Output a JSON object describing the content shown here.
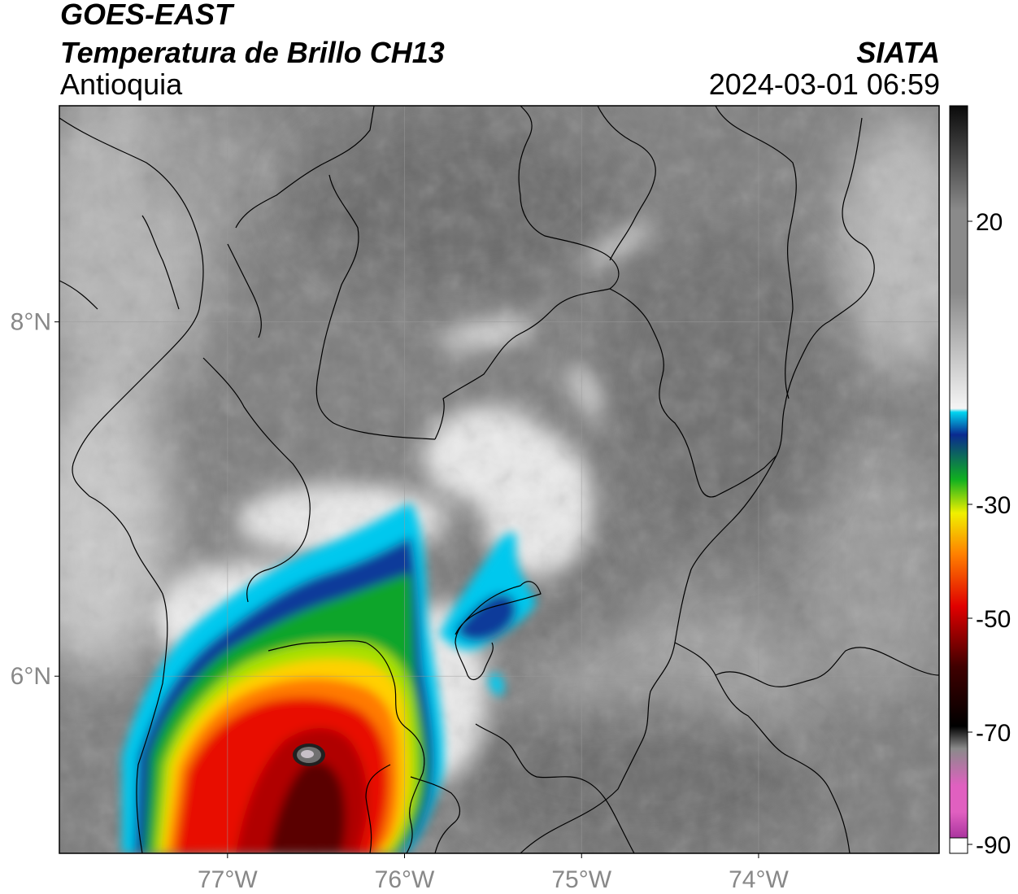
{
  "header": {
    "satellite": "GOES-EAST",
    "product": "Temperatura de Brillo CH13",
    "region": "Antioquia",
    "organization": "SIATA",
    "timestamp": "2024-03-01 06:59"
  },
  "map": {
    "lat_labels": [
      {
        "value": 8,
        "label": "8°N"
      },
      {
        "value": 6,
        "label": "6°N"
      }
    ],
    "lon_labels": [
      {
        "value": -77,
        "label": "77°W"
      },
      {
        "value": -76,
        "label": "76°W"
      },
      {
        "value": -75,
        "label": "75°W"
      },
      {
        "value": -74,
        "label": "74°W"
      }
    ],
    "lon_range": [
      -77.95,
      -72.98
    ],
    "lat_range": [
      5.0,
      9.22
    ]
  },
  "colorbar": {
    "ticks": [
      {
        "value": 20,
        "label": "20"
      },
      {
        "value": -30,
        "label": "-30"
      },
      {
        "value": -50,
        "label": "-50"
      },
      {
        "value": -70,
        "label": "-70"
      },
      {
        "value": -90,
        "label": "-90"
      }
    ],
    "colors": {
      "warm_top": "#0a0a0a",
      "gray": "#8a8a8a",
      "white": "#f5f5f5",
      "cyan": "#00d4f0",
      "blue": "#0a2a90",
      "green": "#10b020",
      "yellow": "#f0f000",
      "orange": "#ff8000",
      "red": "#e00000",
      "dark_red": "#400000",
      "black": "#000000",
      "pink": "#e060c0",
      "purple": "#8a1a8a"
    }
  }
}
